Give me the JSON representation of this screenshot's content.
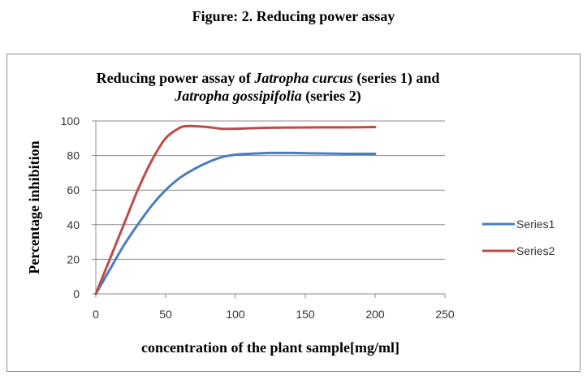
{
  "figure_caption": "Figure: 2. Reducing power assay",
  "chart_data": {
    "type": "line",
    "title_parts": [
      [
        {
          "text": "Reducing power assay of ",
          "italic": false
        },
        {
          "text": "Jatropha curcus",
          "italic": true
        },
        {
          "text": " (series 1) and",
          "italic": false
        }
      ],
      [
        {
          "text": "Jatropha gossipifolia",
          "italic": true
        },
        {
          "text": " (series 2)",
          "italic": false
        }
      ]
    ],
    "xlabel": "concentration of the plant sample[mg/ml]",
    "ylabel": "Percentage inhibition",
    "xlim": [
      0,
      250
    ],
    "ylim": [
      0,
      100
    ],
    "xticks": [
      0,
      50,
      100,
      150,
      200,
      250
    ],
    "yticks": [
      0,
      20,
      40,
      60,
      80,
      100
    ],
    "grid": "horizontal",
    "legend_position": "right",
    "series": [
      {
        "name": "Series1",
        "color": "#4a7ebb",
        "x": [
          0,
          10,
          20,
          30,
          40,
          50,
          60,
          70,
          80,
          90,
          100,
          110,
          125,
          140,
          160,
          180,
          200
        ],
        "y": [
          0,
          14,
          28,
          40,
          51,
          60,
          67,
          72,
          76,
          79,
          80.5,
          81,
          81.5,
          81.5,
          81.2,
          81,
          81
        ]
      },
      {
        "name": "Series2",
        "color": "#be4b48",
        "x": [
          0,
          10,
          20,
          30,
          40,
          50,
          60,
          65,
          70,
          80,
          90,
          100,
          120,
          140,
          160,
          180,
          200
        ],
        "y": [
          0,
          20,
          40,
          60,
          77,
          90,
          96,
          97,
          97,
          96.5,
          95.5,
          95.5,
          96,
          96.2,
          96.3,
          96.3,
          96.5
        ]
      }
    ]
  }
}
